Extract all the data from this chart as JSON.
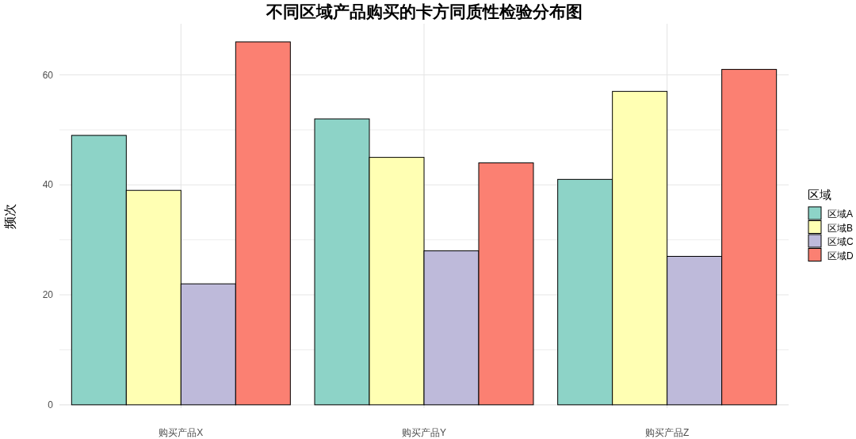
{
  "chart_data": {
    "type": "bar",
    "title": "不同区域产品购买的卡方同质性检验分布图",
    "ylabel": "频次",
    "legend_title": "区域",
    "categories": [
      "购买产品X",
      "购买产品Y",
      "购买产品Z"
    ],
    "series": [
      {
        "name": "区域A",
        "color": "#8dd3c7",
        "values": [
          49,
          52,
          41
        ]
      },
      {
        "name": "区域B",
        "color": "#ffffb3",
        "values": [
          39,
          45,
          57
        ]
      },
      {
        "name": "区域C",
        "color": "#bebada",
        "values": [
          22,
          28,
          27
        ]
      },
      {
        "name": "区域D",
        "color": "#fb8072",
        "values": [
          66,
          44,
          61
        ]
      }
    ],
    "ylim": [
      -0.6,
      69.3
    ],
    "yticks": [
      0,
      {
        "value": 10,
        "label": null
      },
      20,
      {
        "value": 30,
        "label": null
      },
      40,
      {
        "value": 50,
        "label": null
      },
      60
    ],
    "grid": true,
    "legend": "right"
  }
}
